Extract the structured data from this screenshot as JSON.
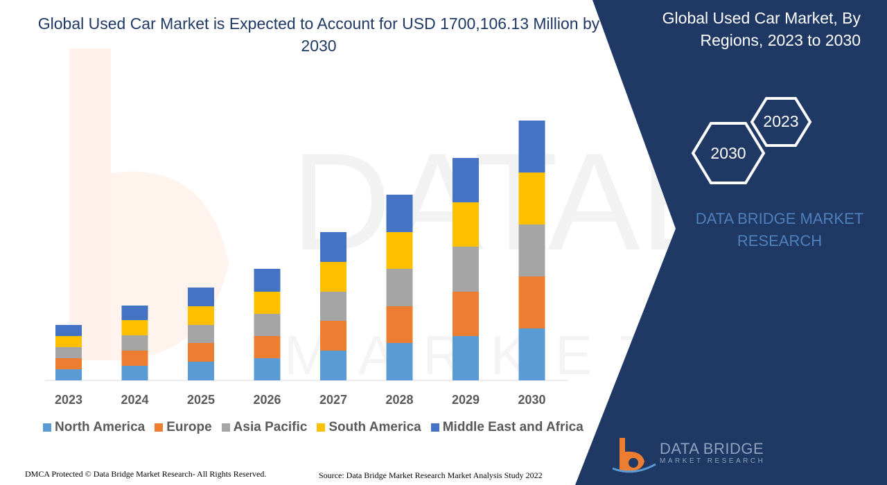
{
  "title": "Global Used Car Market is Expected to Account for USD 1700,106.13 Million by 2030",
  "panel": {
    "title": "Global Used Car Market, By Regions, 2023 to 2030",
    "hex_year_1": "2023",
    "hex_year_2": "2030",
    "brand": "DATA BRIDGE MARKET RESEARCH",
    "background_color": "#1f3864"
  },
  "logo": {
    "main": "DATA BRIDGE",
    "sub": "MARKET RESEARCH",
    "icon": "db-logo-icon"
  },
  "footer": {
    "left": "DMCA Protected © Data Bridge Market Research- All Rights Reserved.",
    "right": "Source: Data Bridge Market Research Market Analysis Study 2022"
  },
  "chart_data": {
    "type": "bar",
    "stacked": true,
    "categories": [
      "2023",
      "2024",
      "2025",
      "2026",
      "2027",
      "2028",
      "2029",
      "2030"
    ],
    "series": [
      {
        "name": "North America",
        "color": "#5b9bd5",
        "values": [
          16,
          21,
          27,
          32,
          43,
          54,
          64,
          75
        ]
      },
      {
        "name": "Europe",
        "color": "#ed7d31",
        "values": [
          16,
          22,
          27,
          32,
          43,
          53,
          64,
          75
        ]
      },
      {
        "name": "Asia Pacific",
        "color": "#a5a5a5",
        "values": [
          16,
          22,
          26,
          32,
          42,
          54,
          65,
          75
        ]
      },
      {
        "name": "South America",
        "color": "#ffc000",
        "values": [
          16,
          22,
          27,
          32,
          43,
          53,
          64,
          75
        ]
      },
      {
        "name": "Middle East and Africa",
        "color": "#4472c4",
        "values": [
          16,
          21,
          27,
          33,
          43,
          54,
          64,
          75
        ]
      }
    ],
    "xlabel": "",
    "ylabel": "",
    "ylim": [
      0,
      375
    ],
    "grid": false,
    "legend_position": "bottom"
  }
}
